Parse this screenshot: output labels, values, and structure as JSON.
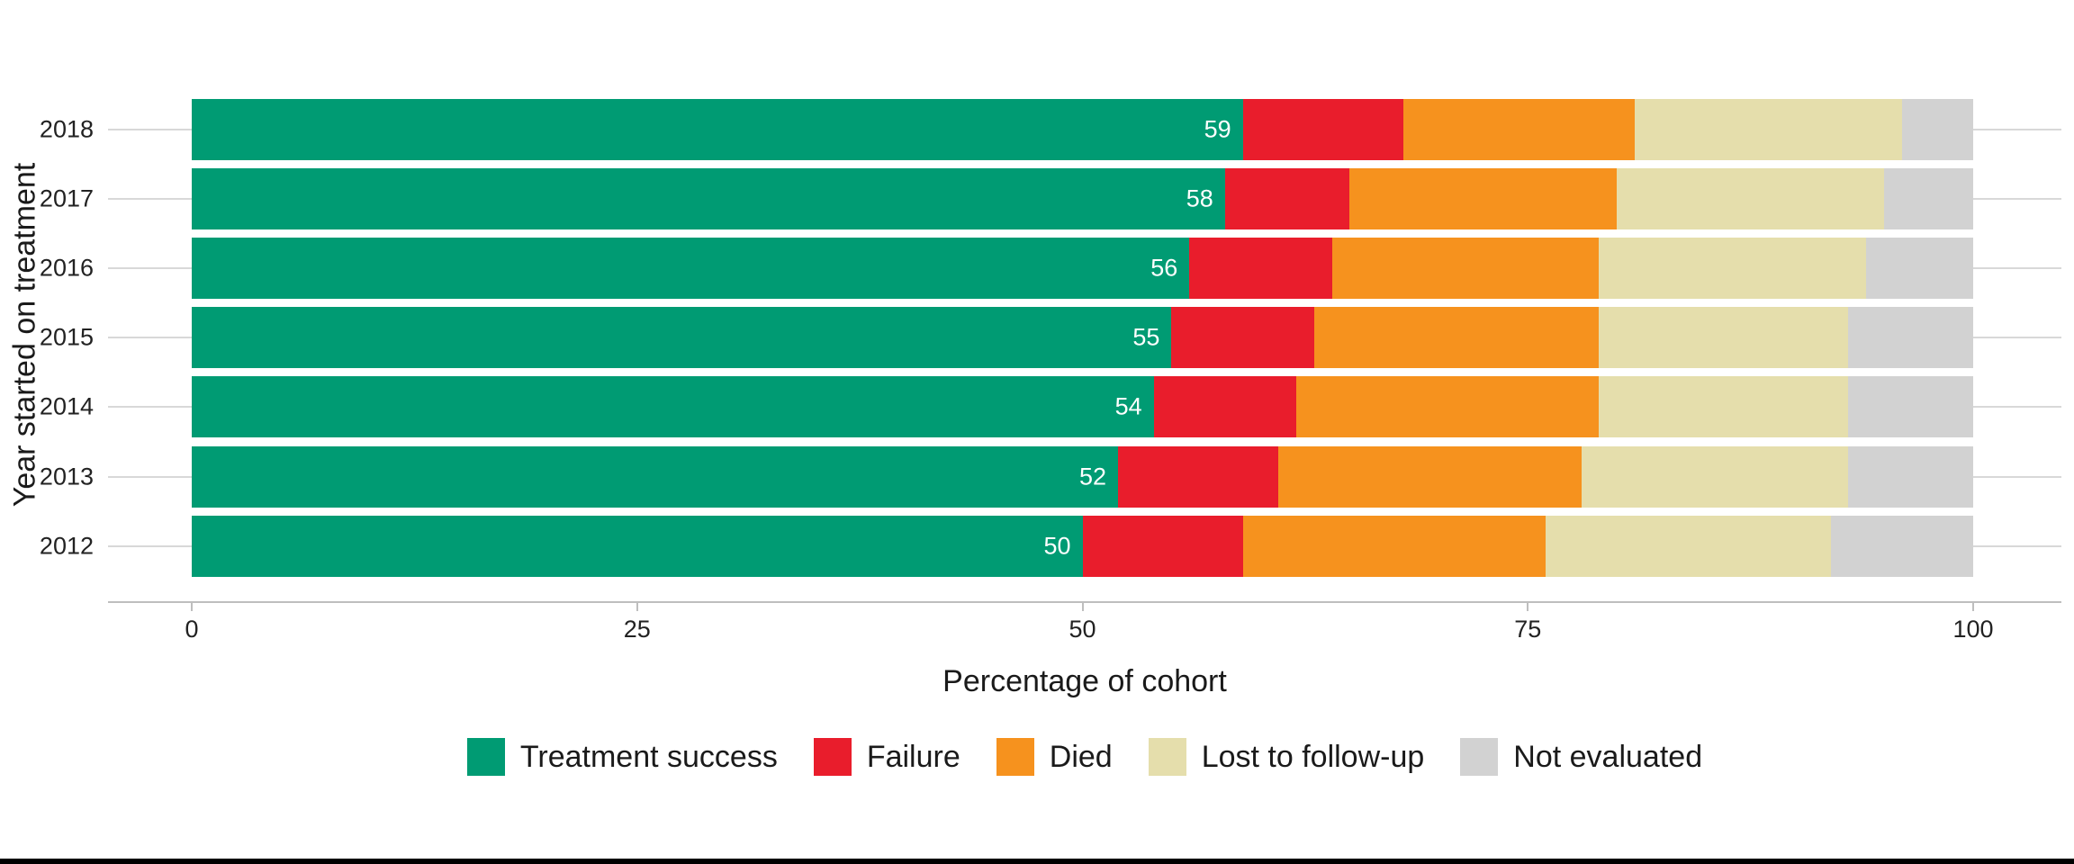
{
  "chart_data": {
    "type": "bar",
    "orientation": "horizontal",
    "stacked": true,
    "title": "",
    "xlabel": "Percentage of cohort",
    "ylabel": "Year started on treatment",
    "xlim": [
      0,
      100
    ],
    "x_ticks": [
      0,
      25,
      50,
      75,
      100
    ],
    "x_tick_labels": [
      "0",
      "25",
      "50",
      "75",
      "100"
    ],
    "categories": [
      "2018",
      "2017",
      "2016",
      "2015",
      "2014",
      "2013",
      "2012"
    ],
    "series": [
      {
        "name": "Treatment success",
        "color": "#009B73",
        "values": [
          59,
          58,
          56,
          55,
          54,
          52,
          50
        ]
      },
      {
        "name": "Failure",
        "color": "#E91D2C",
        "values": [
          9,
          7,
          8,
          8,
          8,
          9,
          9
        ]
      },
      {
        "name": "Died",
        "color": "#F6921E",
        "values": [
          13,
          15,
          15,
          16,
          17,
          17,
          17
        ]
      },
      {
        "name": "Lost to follow-up",
        "color": "#E5DEAC",
        "values": [
          15,
          15,
          15,
          14,
          14,
          15,
          16
        ]
      },
      {
        "name": "Not evaluated",
        "color": "#D2D2D2",
        "values": [
          4,
          5,
          6,
          7,
          7,
          7,
          8
        ]
      }
    ],
    "value_labels_series": "Treatment success",
    "value_labels": [
      "59",
      "58",
      "56",
      "55",
      "54",
      "52",
      "50"
    ],
    "grid": "horizontal",
    "legend_position": "bottom",
    "colors": {
      "grid": "#d8d8d8",
      "axis_line": "#bebebe",
      "text": "#1a1a1a",
      "bar_label_text": "#ffffff",
      "background": "#ffffff"
    }
  }
}
